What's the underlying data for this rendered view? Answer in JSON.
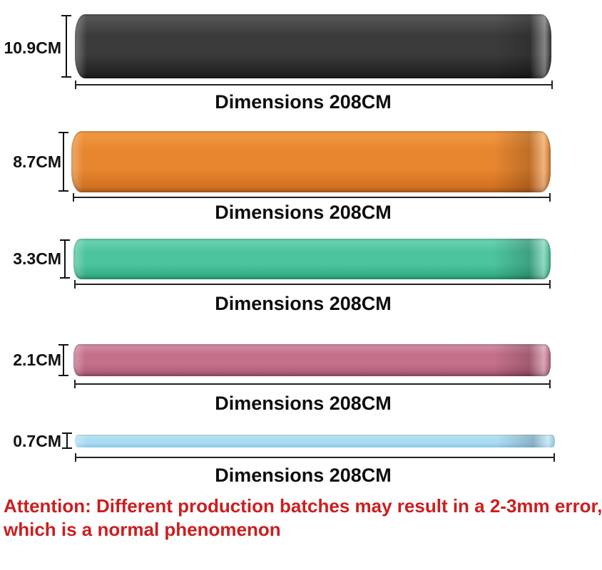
{
  "bands": [
    {
      "color_name": "black",
      "size_label": "10.9CM",
      "dimension_label": "Dimensions 208CM",
      "color": "#3b3b3b",
      "color_light": "#5a5a5a",
      "color_dark": "#1c1c1c"
    },
    {
      "color_name": "orange",
      "size_label": "8.7CM",
      "dimension_label": "Dimensions 208CM",
      "color": "#e8862f",
      "color_light": "#f29a44",
      "color_dark": "#c96a1e"
    },
    {
      "color_name": "green",
      "size_label": "3.3CM",
      "dimension_label": "Dimensions 208CM",
      "color": "#4cc49e",
      "color_light": "#6fd4b4",
      "color_dark": "#2ea981"
    },
    {
      "color_name": "pink",
      "size_label": "2.1CM",
      "dimension_label": "Dimensions 208CM",
      "color": "#c4708a",
      "color_light": "#d490a4",
      "color_dark": "#a85672"
    },
    {
      "color_name": "lightblue",
      "size_label": "0.7CM",
      "dimension_label": "Dimensions 208CM",
      "color": "#abdcf2",
      "color_light": "#c6e9f7",
      "color_dark": "#8cc8e6"
    }
  ],
  "attention": {
    "line1": "Attention: Different production batches may result in a 2-3mm error,",
    "line2": "which is a normal phenomenon",
    "color": "#cc1e1e"
  }
}
